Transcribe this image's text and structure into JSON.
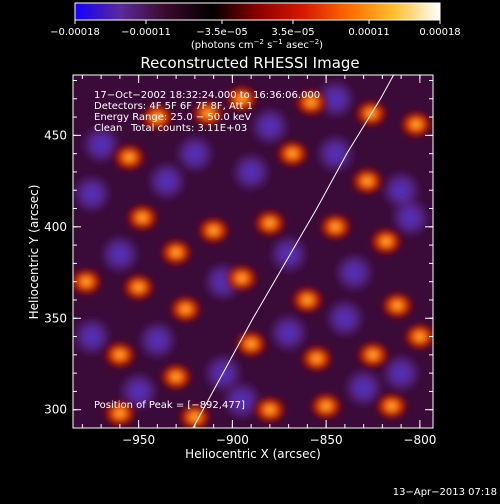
{
  "chart_data": {
    "type": "heatmap",
    "title": "Reconstructed RHESSI Image",
    "xlabel": "Heliocentric X (arcsec)",
    "ylabel": "Heliocentric Y (arcsec)",
    "xlim": [
      -985,
      -793
    ],
    "ylim": [
      290,
      483
    ],
    "x_ticks": [
      -950,
      -900,
      -850,
      -800
    ],
    "x_tick_labels": [
      "−950",
      "−900",
      "−850",
      "−800"
    ],
    "y_ticks": [
      300,
      350,
      400,
      450
    ],
    "y_tick_labels": [
      "300",
      "350",
      "400",
      "450"
    ],
    "colorbar": {
      "ticks": [
        -0.00018,
        -0.00011,
        -3.5e-05,
        3.5e-05,
        0.00011,
        0.00018
      ],
      "tick_labels": [
        "−0.00018",
        "−0.00011",
        "−3.5e−05",
        "3.5e−05",
        "0.00011",
        "0.00018"
      ],
      "range": [
        -0.00018,
        0.00018
      ],
      "units_prefix": "(photons cm",
      "units_exp1": "−2",
      "units_mid": " s",
      "units_exp2": "−1",
      "units_mid2": " asec",
      "units_exp3": "−2",
      "units_suffix": ")",
      "colors": [
        "#1400ff",
        "#5a2a9a",
        "#3a0a2a",
        "#000000",
        "#8a0000",
        "#d81800",
        "#ff6a00",
        "#ffc030",
        "#ffffff"
      ]
    },
    "annotations": {
      "date_range": "17−Oct−2002 18:32:24.000 to 16:36:06.000",
      "detectors": "Detectors: 4F 5F 6F 7F 8F, Att 1",
      "energy": "Energy Range: 25.0 − 50.0 keV",
      "clean_label": "Clean",
      "total_counts": "Total counts: 3.11E+03",
      "peak": "Position of Peak = [−892,477]"
    },
    "peak_position": [
      -892,
      477
    ],
    "blobs_hot": [
      [
        -955,
        438
      ],
      [
        -913,
        462
      ],
      [
        -895,
        470
      ],
      [
        -858,
        468
      ],
      [
        -826,
        462
      ],
      [
        -828,
        425
      ],
      [
        -802,
        456
      ],
      [
        -948,
        405
      ],
      [
        -930,
        386
      ],
      [
        -910,
        398
      ],
      [
        -880,
        402
      ],
      [
        -845,
        400
      ],
      [
        -818,
        392
      ],
      [
        -950,
        367
      ],
      [
        -925,
        355
      ],
      [
        -895,
        372
      ],
      [
        -860,
        360
      ],
      [
        -812,
        357
      ],
      [
        -960,
        330
      ],
      [
        -930,
        318
      ],
      [
        -890,
        336
      ],
      [
        -855,
        328
      ],
      [
        -825,
        330
      ],
      [
        -800,
        340
      ],
      [
        -960,
        298
      ],
      [
        -920,
        296
      ],
      [
        -880,
        300
      ],
      [
        -850,
        302
      ],
      [
        -815,
        302
      ],
      [
        -978,
        370
      ],
      [
        -868,
        440
      ],
      [
        -940,
        460
      ]
    ],
    "blobs_cold": [
      [
        -970,
        445
      ],
      [
        -935,
        425
      ],
      [
        -890,
        430
      ],
      [
        -845,
        440
      ],
      [
        -810,
        420
      ],
      [
        -960,
        385
      ],
      [
        -905,
        370
      ],
      [
        -870,
        385
      ],
      [
        -835,
        375
      ],
      [
        -805,
        405
      ],
      [
        -975,
        340
      ],
      [
        -940,
        338
      ],
      [
        -905,
        320
      ],
      [
        -870,
        342
      ],
      [
        -840,
        350
      ],
      [
        -810,
        320
      ],
      [
        -950,
        310
      ],
      [
        -895,
        305
      ],
      [
        -830,
        312
      ],
      [
        -880,
        455
      ],
      [
        -920,
        440
      ],
      [
        -975,
        418
      ],
      [
        -845,
        470
      ]
    ],
    "limb": [
      [
        -921,
        290
      ],
      [
        -905,
        320
      ],
      [
        -889,
        350
      ],
      [
        -872,
        380
      ],
      [
        -855,
        410
      ],
      [
        -839,
        440
      ],
      [
        -821,
        470
      ],
      [
        -814,
        483
      ]
    ],
    "footer_date": "13−Apr−2013 07:18"
  }
}
